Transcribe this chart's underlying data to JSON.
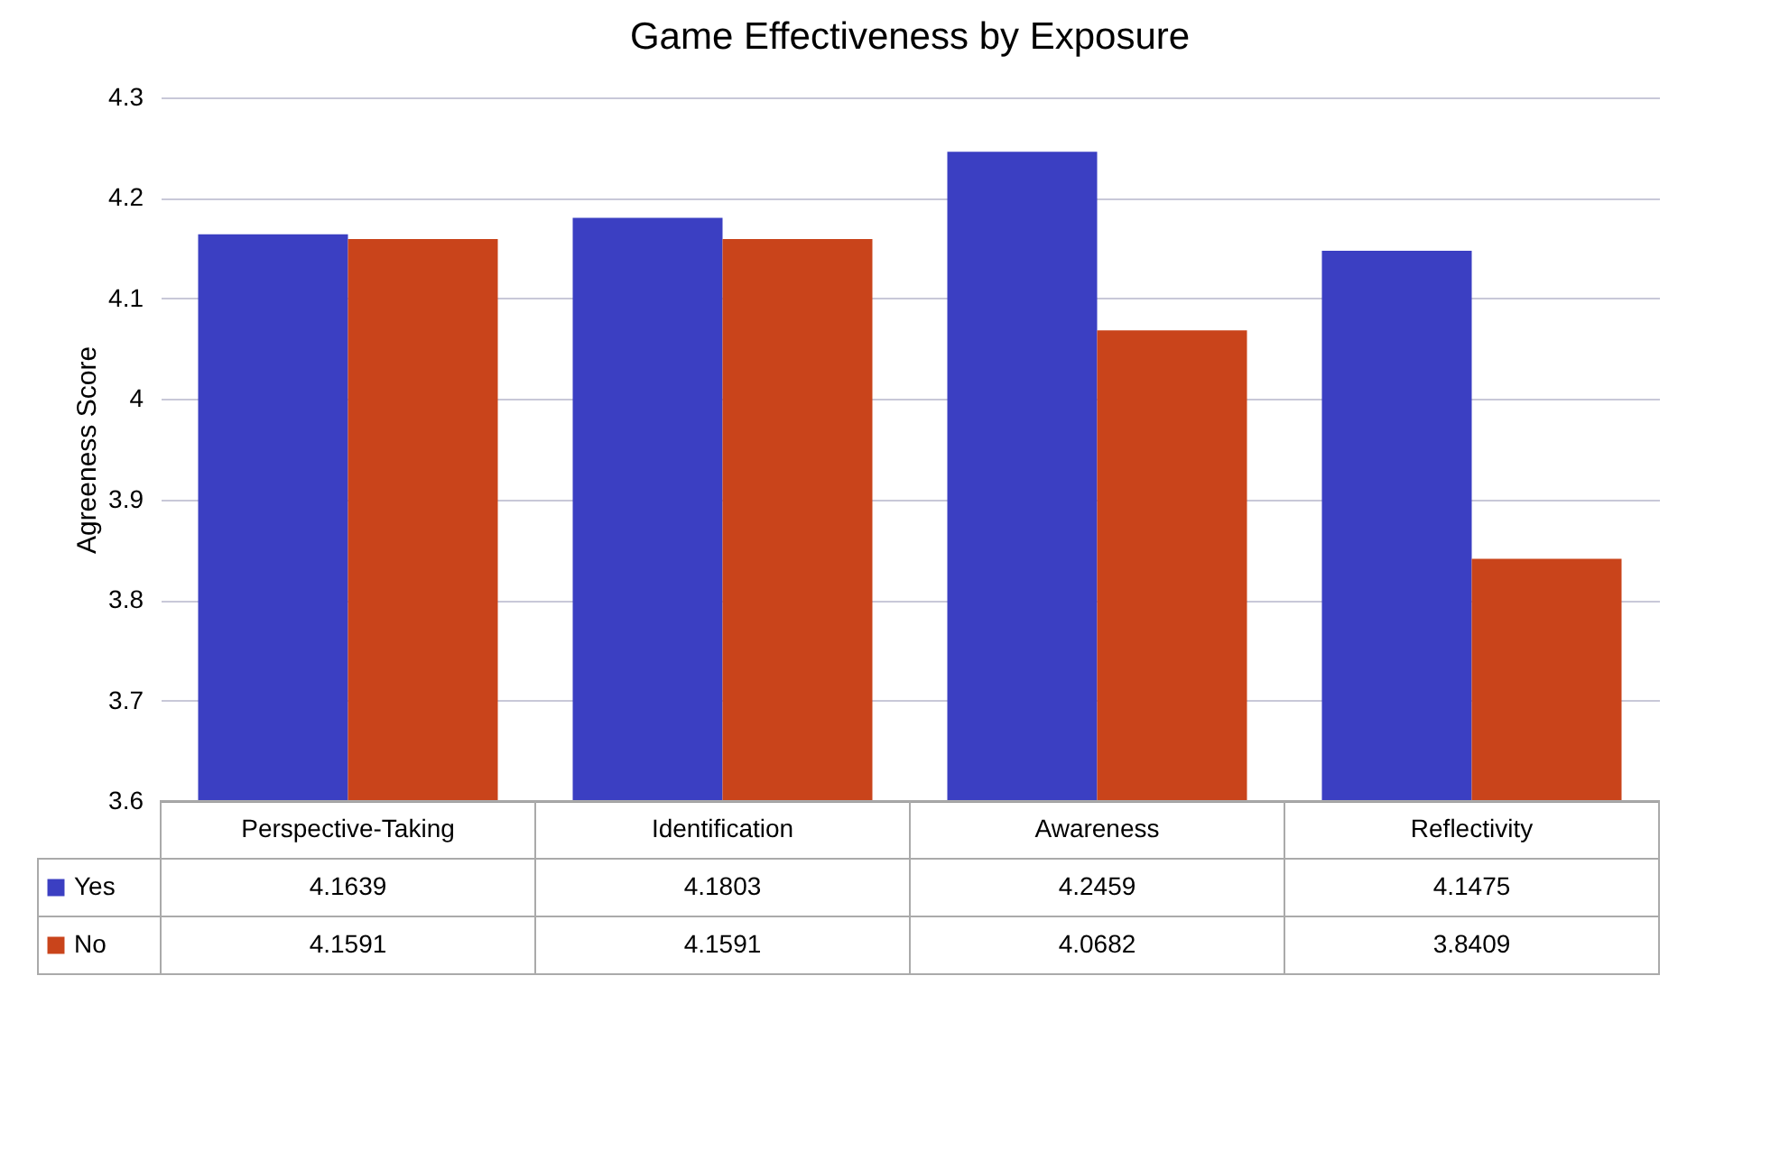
{
  "chart_data": {
    "type": "bar",
    "title": "Game Effectiveness by Exposure",
    "ylabel": "Agreeness Score",
    "categories": [
      "Perspective-Taking",
      "Identification",
      "Awareness",
      "Reflectivity"
    ],
    "series": [
      {
        "name": "Yes",
        "color": "#3b3fc2",
        "values": [
          4.1639,
          4.1803,
          4.2459,
          4.1475
        ]
      },
      {
        "name": "No",
        "color": "#c9441b",
        "values": [
          4.1591,
          4.1591,
          4.0682,
          3.8409
        ]
      }
    ],
    "ylim": [
      3.6,
      4.3
    ],
    "yticks": [
      3.6,
      3.7,
      3.8,
      3.9,
      4,
      4.1,
      4.2,
      4.3
    ],
    "grid": "y",
    "legend": "bottom",
    "data_labels": true
  }
}
